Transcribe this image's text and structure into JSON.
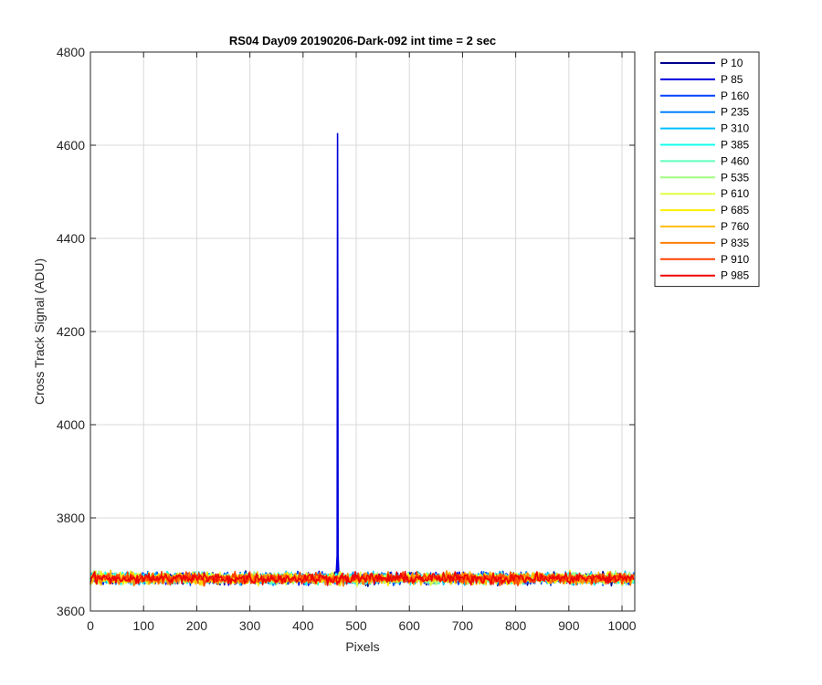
{
  "chart_data": {
    "type": "line",
    "title": "RS04 Day09 20190206-Dark-092 int time = 2 sec",
    "xlabel": "Pixels",
    "ylabel": "Cross Track Signal (ADU)",
    "xlim": [
      0,
      1024
    ],
    "ylim": [
      3600,
      4800
    ],
    "xticks": [
      0,
      100,
      200,
      300,
      400,
      500,
      600,
      700,
      800,
      900,
      1000
    ],
    "yticks": [
      3600,
      3800,
      4000,
      4200,
      4400,
      4600,
      4800
    ],
    "grid": true,
    "legend_position": "outside-right",
    "baseline_level": 3670,
    "noise_amplitude": 12,
    "spike": {
      "series": "P 85",
      "x": 465,
      "y": 4625
    },
    "series": [
      {
        "name": "P 10",
        "color": "#00008f"
      },
      {
        "name": "P 85",
        "color": "#0000df"
      },
      {
        "name": "P 160",
        "color": "#0040ff"
      },
      {
        "name": "P 235",
        "color": "#0080ff"
      },
      {
        "name": "P 310",
        "color": "#00bfff"
      },
      {
        "name": "P 385",
        "color": "#10ffef"
      },
      {
        "name": "P 460",
        "color": "#60ffbf"
      },
      {
        "name": "P 535",
        "color": "#9fff7f"
      },
      {
        "name": "P 610",
        "color": "#dfff40"
      },
      {
        "name": "P 685",
        "color": "#ffef00"
      },
      {
        "name": "P 760",
        "color": "#ffbf00"
      },
      {
        "name": "P 835",
        "color": "#ff8000"
      },
      {
        "name": "P 910",
        "color": "#ff4000"
      },
      {
        "name": "P 985",
        "color": "#ef0000"
      }
    ]
  }
}
